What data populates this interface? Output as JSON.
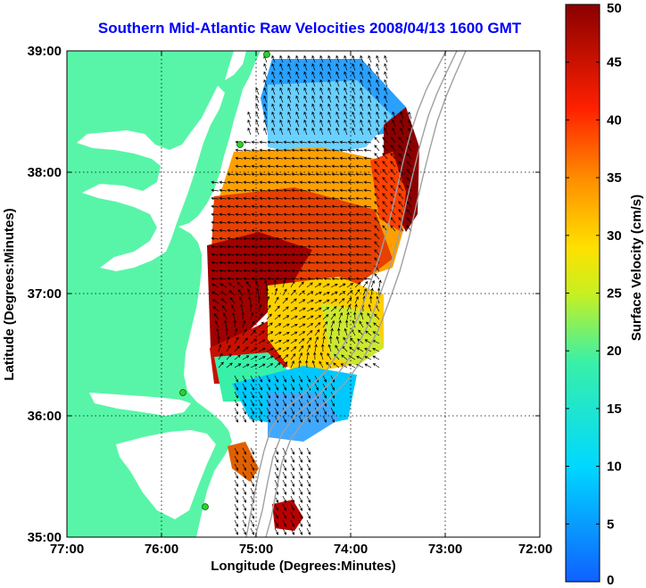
{
  "title": "Southern Mid-Atlantic Raw Velocities 2008/04/13 1600 GMT",
  "xlabel": "Longitude (Degrees:Minutes)",
  "ylabel": "Latitude (Degrees:Minutes)",
  "colorbar": {
    "label": "Surface Velocity (cm/s)",
    "min": 0,
    "max": 50,
    "ticks": [
      "0",
      "5",
      "10",
      "15",
      "20",
      "25",
      "30",
      "35",
      "40",
      "45",
      "50"
    ]
  },
  "map": {
    "lon_range": [
      -77,
      -72
    ],
    "lat_range": [
      35,
      39
    ],
    "x_ticks": [
      "77:00",
      "76:00",
      "75:00",
      "74:00",
      "73:00",
      "72:00"
    ],
    "y_ticks": [
      "39:00",
      "38:00",
      "37:00",
      "36:00",
      "35:00"
    ],
    "grid": "dotted",
    "colors": {
      "land": "#58f5a8",
      "water": "#ffffff",
      "bathymetry": "#a0a0a0",
      "station": "#32cd32",
      "arrow": "#000000"
    }
  }
}
